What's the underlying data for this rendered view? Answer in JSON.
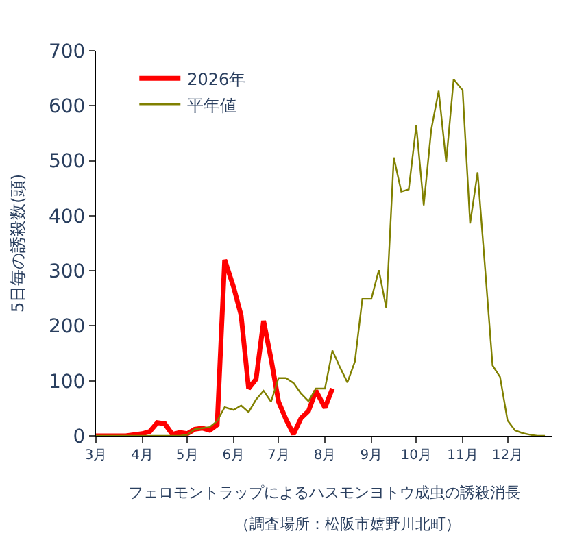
{
  "chart_data": {
    "type": "line",
    "ylabel": "5日毎の誘殺数(頭)",
    "xlabel": "フェロモントラップによるハスモンヨトウ成虫の誘殺消長",
    "annotations": [
      "（調査場所：松阪市嬉野川北町）"
    ],
    "xlim": [
      "--03-01",
      "--12-31"
    ],
    "xticks": [
      {
        "value": "--03-01",
        "label": "3月"
      },
      {
        "value": "--04-01",
        "label": "4月"
      },
      {
        "value": "--05-01",
        "label": "5月"
      },
      {
        "value": "--06-01",
        "label": "6月"
      },
      {
        "value": "--07-01",
        "label": "7月"
      },
      {
        "value": "--08-01",
        "label": "8月"
      },
      {
        "value": "--09-01",
        "label": "9月"
      },
      {
        "value": "--10-01",
        "label": "10月"
      },
      {
        "value": "--11-01",
        "label": "11月"
      },
      {
        "value": "--12-01",
        "label": "12月"
      }
    ],
    "ylim": [
      0,
      700
    ],
    "yticks": [
      0,
      100,
      200,
      300,
      400,
      500,
      600,
      700
    ],
    "legend": "top left",
    "marker": "none",
    "series": [
      {
        "name": "2026年",
        "color": "#ff0000",
        "x": [
          "--03-01",
          "--03-06",
          "--03-11",
          "--03-16",
          "--03-21",
          "--03-26",
          "--04-01",
          "--04-06",
          "--04-11",
          "--04-16",
          "--04-21",
          "--04-26",
          "--05-01",
          "--05-06",
          "--05-11",
          "--05-16",
          "--05-21",
          "--05-26",
          "--06-01",
          "--06-06",
          "--06-11",
          "--06-16",
          "--06-21",
          "--06-26",
          "--07-01",
          "--07-06",
          "--07-11",
          "--07-16",
          "--07-21",
          "--07-26",
          "--08-01",
          "--08-06"
        ],
        "values": [
          0,
          0,
          0,
          0,
          0,
          2,
          4,
          8,
          24,
          22,
          3,
          6,
          4,
          12,
          14,
          10,
          20,
          320,
          270,
          219,
          86,
          103,
          209,
          140,
          62,
          30,
          3,
          32,
          45,
          82,
          51,
          86
        ]
      },
      {
        "name": "平年値",
        "color": "#808000",
        "x": [
          "--03-01",
          "--03-06",
          "--03-11",
          "--03-16",
          "--03-21",
          "--03-26",
          "--04-01",
          "--04-06",
          "--04-11",
          "--04-16",
          "--04-21",
          "--04-26",
          "--05-01",
          "--05-06",
          "--05-11",
          "--05-16",
          "--05-21",
          "--05-26",
          "--06-01",
          "--06-06",
          "--06-11",
          "--06-16",
          "--06-21",
          "--06-26",
          "--07-01",
          "--07-06",
          "--07-11",
          "--07-16",
          "--07-21",
          "--07-26",
          "--08-01",
          "--08-06",
          "--08-11",
          "--08-16",
          "--08-21",
          "--08-26",
          "--09-01",
          "--09-06",
          "--09-11",
          "--09-16",
          "--09-21",
          "--09-26",
          "--10-01",
          "--10-06",
          "--10-11",
          "--10-16",
          "--10-21",
          "--10-26",
          "--11-01",
          "--11-06",
          "--11-11",
          "--11-16",
          "--11-21",
          "--11-26",
          "--12-01",
          "--12-06",
          "--12-11",
          "--12-16",
          "--12-21",
          "--12-26"
        ],
        "values": [
          0,
          0,
          0,
          0,
          0,
          0,
          0,
          0,
          0,
          0,
          0,
          0,
          2,
          12,
          14,
          16,
          27,
          52,
          47,
          55,
          43,
          66,
          82,
          62,
          105,
          105,
          96,
          77,
          63,
          86,
          86,
          155,
          125,
          97,
          135,
          249,
          249,
          301,
          232,
          506,
          444,
          448,
          564,
          419,
          556,
          627,
          498,
          648,
          628,
          386,
          479,
          305,
          128,
          107,
          28,
          10,
          5,
          2,
          0,
          0
        ]
      }
    ]
  }
}
